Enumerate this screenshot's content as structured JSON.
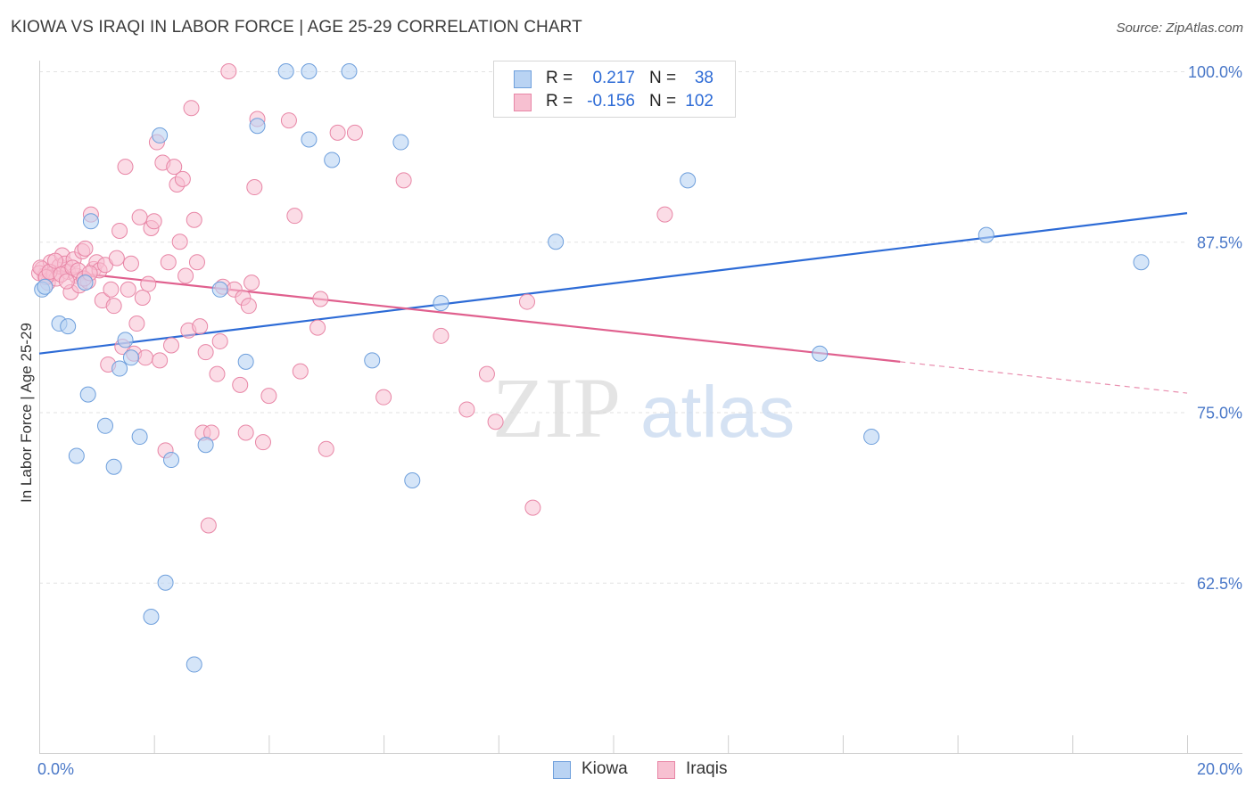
{
  "title": "KIOWA VS IRAQI IN LABOR FORCE | AGE 25-29 CORRELATION CHART",
  "source": "Source: ZipAtlas.com",
  "watermark": {
    "zip": "ZIP",
    "atlas": "atlas"
  },
  "colors": {
    "kiowa_fill": "#b9d3f3",
    "kiowa_stroke": "#6e9fdc",
    "kiowa_line": "#2d6bd6",
    "iraqi_fill": "#f7c0d1",
    "iraqi_stroke": "#e886a6",
    "iraqi_line": "#e0608e",
    "tick_text": "#4a78c8"
  },
  "legend": {
    "kiowa": {
      "r_label": "R =",
      "r_value": "0.217",
      "n_label": "N =",
      "n_value": "38"
    },
    "iraqi": {
      "r_label": "R =",
      "r_value": "-0.156",
      "n_label": "N =",
      "n_value": "102"
    }
  },
  "bottom_legend": {
    "kiowa": "Kiowa",
    "iraqi": "Iraqis"
  },
  "chart_data": {
    "type": "scatter",
    "title": "KIOWA VS IRAQI IN LABOR FORCE | AGE 25-29 CORRELATION CHART",
    "xlabel": "",
    "ylabel": "In Labor Force | Age 25-29",
    "xlim": [
      0,
      20
    ],
    "ylim": [
      50,
      100
    ],
    "x_tick_labels": [
      "0.0%",
      "20.0%"
    ],
    "y_ticks": [
      62.5,
      75.0,
      87.5,
      100.0
    ],
    "y_tick_labels": [
      "62.5%",
      "75.0%",
      "87.5%",
      "100.0%"
    ],
    "grid": true,
    "series": [
      {
        "name": "Kiowa",
        "points": [
          [
            0.05,
            84.0
          ],
          [
            0.35,
            81.5
          ],
          [
            0.5,
            81.3
          ],
          [
            0.8,
            84.5
          ],
          [
            0.9,
            89.0
          ],
          [
            0.85,
            76.3
          ],
          [
            1.15,
            74.0
          ],
          [
            0.65,
            71.8
          ],
          [
            1.3,
            71.0
          ],
          [
            1.5,
            80.3
          ],
          [
            1.6,
            79.0
          ],
          [
            1.4,
            78.2
          ],
          [
            1.75,
            73.2
          ],
          [
            2.1,
            95.3
          ],
          [
            2.3,
            71.5
          ],
          [
            2.9,
            72.6
          ],
          [
            3.15,
            84.0
          ],
          [
            3.6,
            78.7
          ],
          [
            3.8,
            96.0
          ],
          [
            4.3,
            100.0
          ],
          [
            4.7,
            95.0
          ],
          [
            4.7,
            100.0
          ],
          [
            5.1,
            93.5
          ],
          [
            5.4,
            100.0
          ],
          [
            5.8,
            78.8
          ],
          [
            6.3,
            94.8
          ],
          [
            6.5,
            70.0
          ],
          [
            7.0,
            83.0
          ],
          [
            9.0,
            87.5
          ],
          [
            11.3,
            92.0
          ],
          [
            13.6,
            79.3
          ],
          [
            14.5,
            73.2
          ],
          [
            16.5,
            88.0
          ],
          [
            19.2,
            86.0
          ],
          [
            2.2,
            62.5
          ],
          [
            1.95,
            60.0
          ],
          [
            2.7,
            56.5
          ],
          [
            0.1,
            84.2
          ]
        ]
      },
      {
        "name": "Iraqis",
        "points": [
          [
            0.05,
            85.5
          ],
          [
            0.1,
            85.0
          ],
          [
            0.15,
            84.5
          ],
          [
            0.2,
            86.0
          ],
          [
            0.25,
            85.2
          ],
          [
            0.3,
            84.8
          ],
          [
            0.35,
            85.7
          ],
          [
            0.4,
            86.5
          ],
          [
            0.45,
            85.9
          ],
          [
            0.5,
            85.3
          ],
          [
            0.55,
            83.8
          ],
          [
            0.6,
            86.2
          ],
          [
            0.65,
            85.0
          ],
          [
            0.7,
            84.3
          ],
          [
            0.75,
            86.8
          ],
          [
            0.8,
            87.0
          ],
          [
            0.85,
            84.6
          ],
          [
            0.9,
            89.5
          ],
          [
            0.95,
            85.5
          ],
          [
            1.0,
            86.0
          ],
          [
            1.05,
            85.4
          ],
          [
            1.1,
            83.2
          ],
          [
            1.15,
            85.8
          ],
          [
            1.2,
            78.5
          ],
          [
            1.25,
            84.0
          ],
          [
            1.3,
            82.8
          ],
          [
            1.35,
            86.3
          ],
          [
            1.4,
            88.3
          ],
          [
            1.45,
            79.8
          ],
          [
            1.5,
            93.0
          ],
          [
            1.55,
            84.0
          ],
          [
            1.6,
            85.9
          ],
          [
            1.65,
            79.3
          ],
          [
            1.7,
            81.5
          ],
          [
            1.75,
            89.3
          ],
          [
            1.8,
            83.4
          ],
          [
            1.85,
            79.0
          ],
          [
            1.9,
            84.4
          ],
          [
            1.95,
            88.5
          ],
          [
            2.0,
            89.0
          ],
          [
            2.05,
            94.8
          ],
          [
            2.1,
            78.8
          ],
          [
            2.15,
            93.3
          ],
          [
            2.2,
            72.2
          ],
          [
            2.25,
            86.0
          ],
          [
            2.3,
            79.9
          ],
          [
            2.35,
            93.0
          ],
          [
            2.4,
            91.7
          ],
          [
            2.45,
            87.5
          ],
          [
            2.5,
            92.1
          ],
          [
            2.55,
            85.0
          ],
          [
            2.6,
            81.0
          ],
          [
            2.65,
            97.3
          ],
          [
            2.7,
            89.1
          ],
          [
            2.75,
            86.0
          ],
          [
            2.8,
            81.3
          ],
          [
            2.85,
            73.5
          ],
          [
            2.9,
            79.4
          ],
          [
            2.95,
            66.7
          ],
          [
            3.0,
            73.5
          ],
          [
            3.1,
            77.8
          ],
          [
            3.15,
            80.2
          ],
          [
            3.2,
            84.2
          ],
          [
            3.3,
            100.0
          ],
          [
            3.4,
            84.0
          ],
          [
            3.5,
            77.0
          ],
          [
            3.55,
            83.4
          ],
          [
            3.6,
            73.5
          ],
          [
            3.65,
            82.8
          ],
          [
            3.7,
            84.5
          ],
          [
            3.75,
            91.5
          ],
          [
            3.8,
            96.5
          ],
          [
            3.9,
            72.8
          ],
          [
            4.0,
            76.2
          ],
          [
            4.35,
            96.4
          ],
          [
            4.45,
            89.4
          ],
          [
            4.55,
            78.0
          ],
          [
            4.85,
            81.2
          ],
          [
            4.9,
            83.3
          ],
          [
            5.0,
            72.3
          ],
          [
            5.2,
            95.5
          ],
          [
            5.5,
            95.5
          ],
          [
            6.0,
            76.1
          ],
          [
            6.35,
            92.0
          ],
          [
            7.0,
            80.6
          ],
          [
            7.45,
            75.2
          ],
          [
            7.8,
            77.8
          ],
          [
            7.95,
            74.3
          ],
          [
            8.5,
            83.1
          ],
          [
            8.6,
            68.0
          ],
          [
            10.9,
            89.5
          ],
          [
            0.0,
            85.2
          ],
          [
            0.02,
            85.6
          ],
          [
            0.12,
            84.9
          ],
          [
            0.18,
            85.3
          ],
          [
            0.28,
            86.1
          ],
          [
            0.38,
            85.1
          ],
          [
            0.48,
            84.6
          ],
          [
            0.58,
            85.6
          ],
          [
            0.68,
            85.4
          ],
          [
            0.78,
            84.8
          ],
          [
            0.88,
            85.2
          ]
        ]
      }
    ],
    "trend_lines": [
      {
        "name": "Kiowa",
        "x": [
          0,
          20
        ],
        "y": [
          79.3,
          89.6
        ]
      },
      {
        "name": "Iraqis",
        "x": [
          0,
          15
        ],
        "y": [
          85.5,
          78.7
        ],
        "dashed_extension": {
          "x": [
            15,
            20
          ],
          "y": [
            78.7,
            76.4
          ]
        }
      }
    ]
  }
}
